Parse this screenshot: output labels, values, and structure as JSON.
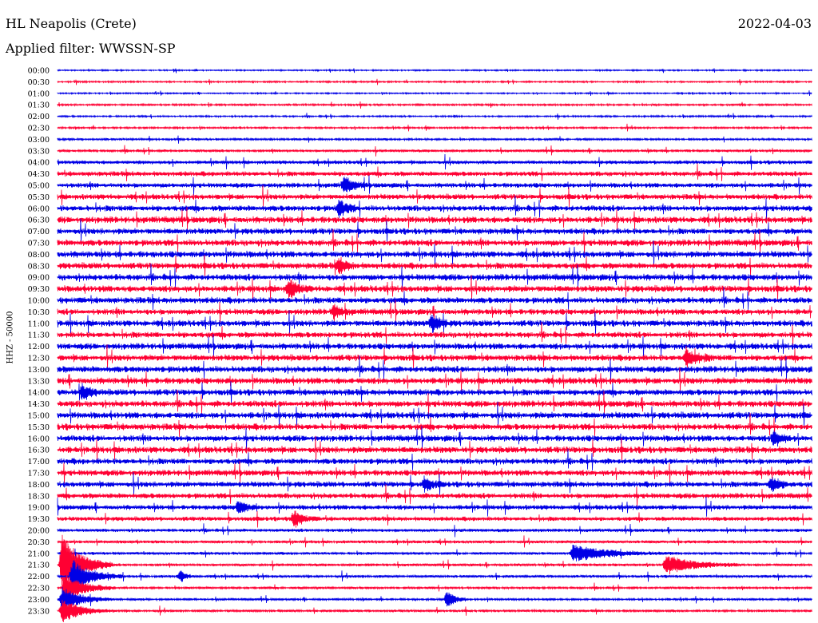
{
  "header": {
    "station": "HL Neapolis (Crete)",
    "date": "2022-04-03",
    "filter": "Applied filter: WWSSN-SP",
    "channel_label": "HHZ - 50000"
  },
  "colors": {
    "trace_a": "#0000e6",
    "trace_b": "#ff0033"
  },
  "chart_data": {
    "type": "line",
    "title": "HL Neapolis (Crete)",
    "subtitle": "Applied filter: WWSSN-SP",
    "ylabel": "HHZ - 50000",
    "row_labels": [
      "00:00",
      "00:30",
      "01:00",
      "01:30",
      "02:00",
      "02:30",
      "03:00",
      "03:30",
      "04:00",
      "04:30",
      "05:00",
      "05:30",
      "06:00",
      "06:30",
      "07:00",
      "07:30",
      "08:00",
      "08:30",
      "09:00",
      "09:30",
      "10:00",
      "10:30",
      "11:00",
      "11:30",
      "12:00",
      "12:30",
      "13:00",
      "13:30",
      "14:00",
      "14:30",
      "15:00",
      "15:30",
      "16:00",
      "16:30",
      "17:00",
      "17:30",
      "18:00",
      "18:30",
      "19:00",
      "19:30",
      "20:00",
      "20:30",
      "21:00",
      "21:30",
      "22:00",
      "22:30",
      "23:00",
      "23:30"
    ],
    "row_colors": [
      "trace_a",
      "trace_b"
    ],
    "row_minutes": 30,
    "noise_level": [
      0.5,
      0.6,
      0.5,
      0.7,
      0.6,
      0.7,
      0.8,
      1.0,
      1.4,
      1.8,
      1.8,
      2.0,
      2.2,
      2.4,
      2.2,
      2.4,
      2.4,
      2.3,
      2.4,
      2.4,
      2.3,
      2.2,
      2.3,
      2.2,
      2.3,
      2.3,
      2.4,
      2.4,
      2.3,
      2.4,
      2.4,
      2.4,
      2.3,
      2.4,
      2.2,
      2.2,
      2.1,
      2.0,
      1.8,
      1.6,
      1.2,
      1.1,
      1.0,
      1.0,
      1.0,
      0.9,
      0.8,
      0.9
    ],
    "events": [
      {
        "row": 42,
        "minute": 20.5,
        "amplitude": 10,
        "duration_min": 4
      },
      {
        "row": 43,
        "minute": 24.2,
        "amplitude": 12,
        "duration_min": 3
      },
      {
        "row": 43,
        "minute": 0.2,
        "amplitude": 40,
        "duration_min": 2
      },
      {
        "row": 44,
        "minute": 0.6,
        "amplitude": 22,
        "duration_min": 2
      },
      {
        "row": 45,
        "minute": 0.3,
        "amplitude": 18,
        "duration_min": 2
      },
      {
        "row": 46,
        "minute": 0.2,
        "amplitude": 16,
        "duration_min": 2
      },
      {
        "row": 47,
        "minute": 0.2,
        "amplitude": 14,
        "duration_min": 2
      },
      {
        "row": 46,
        "minute": 15.5,
        "amplitude": 12,
        "duration_min": 0.8
      },
      {
        "row": 44,
        "minute": 4.9,
        "amplitude": 7,
        "duration_min": 0.6
      },
      {
        "row": 38,
        "minute": 7.2,
        "amplitude": 9,
        "duration_min": 0.8
      },
      {
        "row": 39,
        "minute": 9.4,
        "amplitude": 10,
        "duration_min": 1
      },
      {
        "row": 36,
        "minute": 14.6,
        "amplitude": 9,
        "duration_min": 0.8
      },
      {
        "row": 36,
        "minute": 28.4,
        "amplitude": 9,
        "duration_min": 0.9
      },
      {
        "row": 32,
        "minute": 28.5,
        "amplitude": 10,
        "duration_min": 0.8
      },
      {
        "row": 28,
        "minute": 1.0,
        "amplitude": 9,
        "duration_min": 0.8
      },
      {
        "row": 25,
        "minute": 25.0,
        "amplitude": 11,
        "duration_min": 1.2
      },
      {
        "row": 22,
        "minute": 14.9,
        "amplitude": 12,
        "duration_min": 0.8
      },
      {
        "row": 21,
        "minute": 11.0,
        "amplitude": 9,
        "duration_min": 0.8
      },
      {
        "row": 19,
        "minute": 9.2,
        "amplitude": 12,
        "duration_min": 0.9
      },
      {
        "row": 17,
        "minute": 11.2,
        "amplitude": 10,
        "duration_min": 0.8
      },
      {
        "row": 12,
        "minute": 11.2,
        "amplitude": 11,
        "duration_min": 0.8
      },
      {
        "row": 10,
        "minute": 11.4,
        "amplitude": 10,
        "duration_min": 1
      }
    ]
  }
}
